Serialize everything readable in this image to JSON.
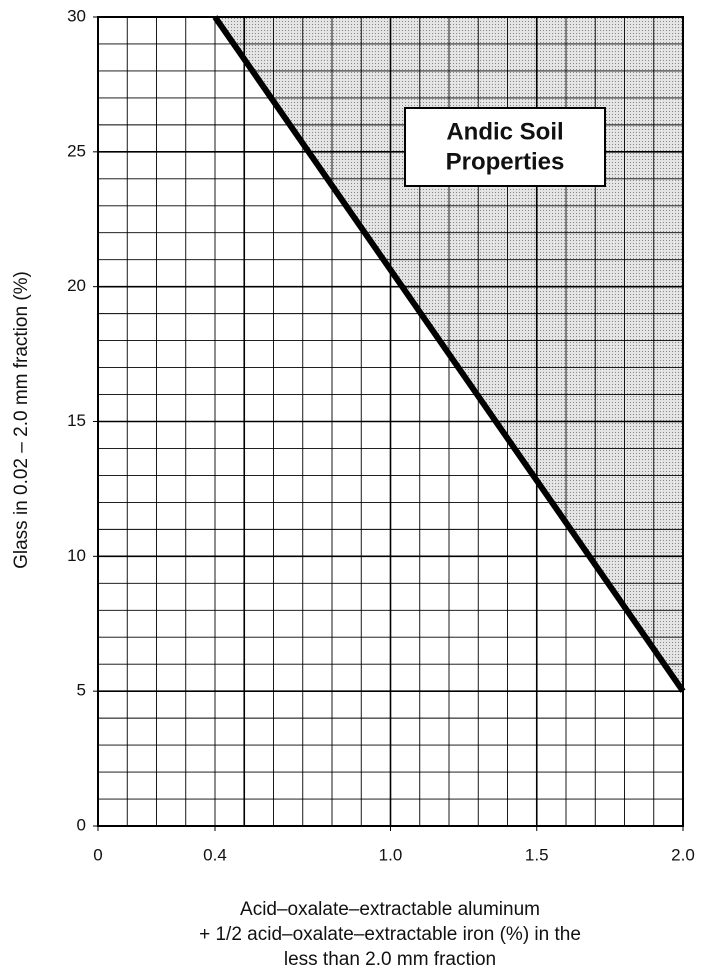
{
  "chart_data": {
    "type": "line",
    "xlabel": [
      "Acid–oxalate–extractable aluminum",
      "+ 1/2 acid–oxalate–extractable  iron (%) in the",
      "less than 2.0 mm fraction"
    ],
    "ylabel": "Glass in 0.02 – 2.0 mm fraction (%)",
    "annotation": [
      "Andic Soil",
      "Properties"
    ],
    "series": [
      {
        "x": [
          0.4,
          2.0
        ],
        "values": [
          30,
          5
        ],
        "color": "#000000"
      }
    ],
    "xlim": [
      0,
      2.0
    ],
    "ylim": [
      0,
      30
    ],
    "xticks": [
      0,
      0.4,
      {
        "value": 1,
        "label": "1.0"
      },
      1.5,
      {
        "value": 2,
        "label": "2.0"
      }
    ],
    "yticks": [
      0,
      5,
      10,
      15,
      20,
      25,
      30
    ],
    "grid": true,
    "xminor": 0.1,
    "yminor": 1,
    "xmajor": 0.5,
    "ymajor": 5,
    "shade": "above"
  }
}
